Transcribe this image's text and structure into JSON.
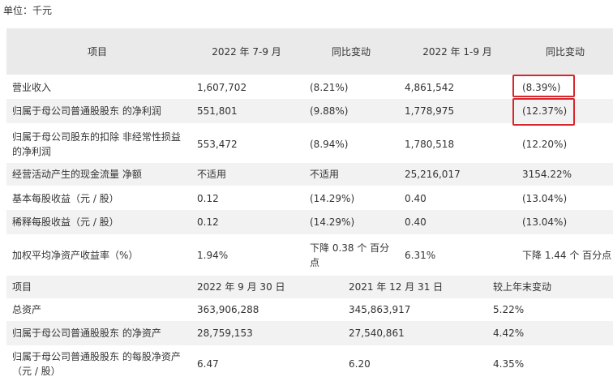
{
  "unit_label": "单位：千元",
  "table1": {
    "headers": [
      "项目",
      "2022 年 7-9 月",
      "同比变动",
      "2022 年 1-9 月",
      "同比变动"
    ],
    "rows": [
      [
        "营业收入",
        "1,607,702",
        "(8.21%)",
        "4,861,542",
        "(8.39%)"
      ],
      [
        "归属于母公司普通股股东 的净利润",
        "551,801",
        "(9.88%)",
        "1,778,975",
        "(12.37%)"
      ],
      [
        "归属于母公司股东的扣除 非经常性损益的净利润",
        "553,472",
        "(8.94%)",
        "1,780,518",
        "(12.20%)"
      ],
      [
        "经营活动产生的现金流量 净额",
        "不适用",
        "不适用",
        "25,216,017",
        "3154.22%"
      ],
      [
        "基本每股收益（元 / 股）",
        "0.12",
        "(14.29%)",
        "0.40",
        "(13.04%)"
      ],
      [
        "稀释每股收益（元 / 股）",
        "0.12",
        "(14.29%)",
        "0.40",
        "(13.04%)"
      ],
      [
        "加权平均净资产收益率（%）",
        "1.94%",
        "下降 0.38 个 百分点",
        "6.31%",
        "下降 1.44 个 百分点"
      ]
    ]
  },
  "table2": {
    "headers": [
      "项目",
      "2022 年 9 月 30 日",
      "2021 年 12 月 31 日",
      "较上年末变动"
    ],
    "rows": [
      [
        "总资产",
        "363,906,288",
        "345,863,917",
        "5.22%"
      ],
      [
        "归属于母公司普通股股东 的净资产",
        "28,759,153",
        "27,540,861",
        "4.42%"
      ],
      [
        "归属于母公司普通股股东 的每股净资产（元 / 股）",
        "6.47",
        "6.20",
        "4.35%"
      ]
    ]
  },
  "highlight_color": "#d8262c"
}
